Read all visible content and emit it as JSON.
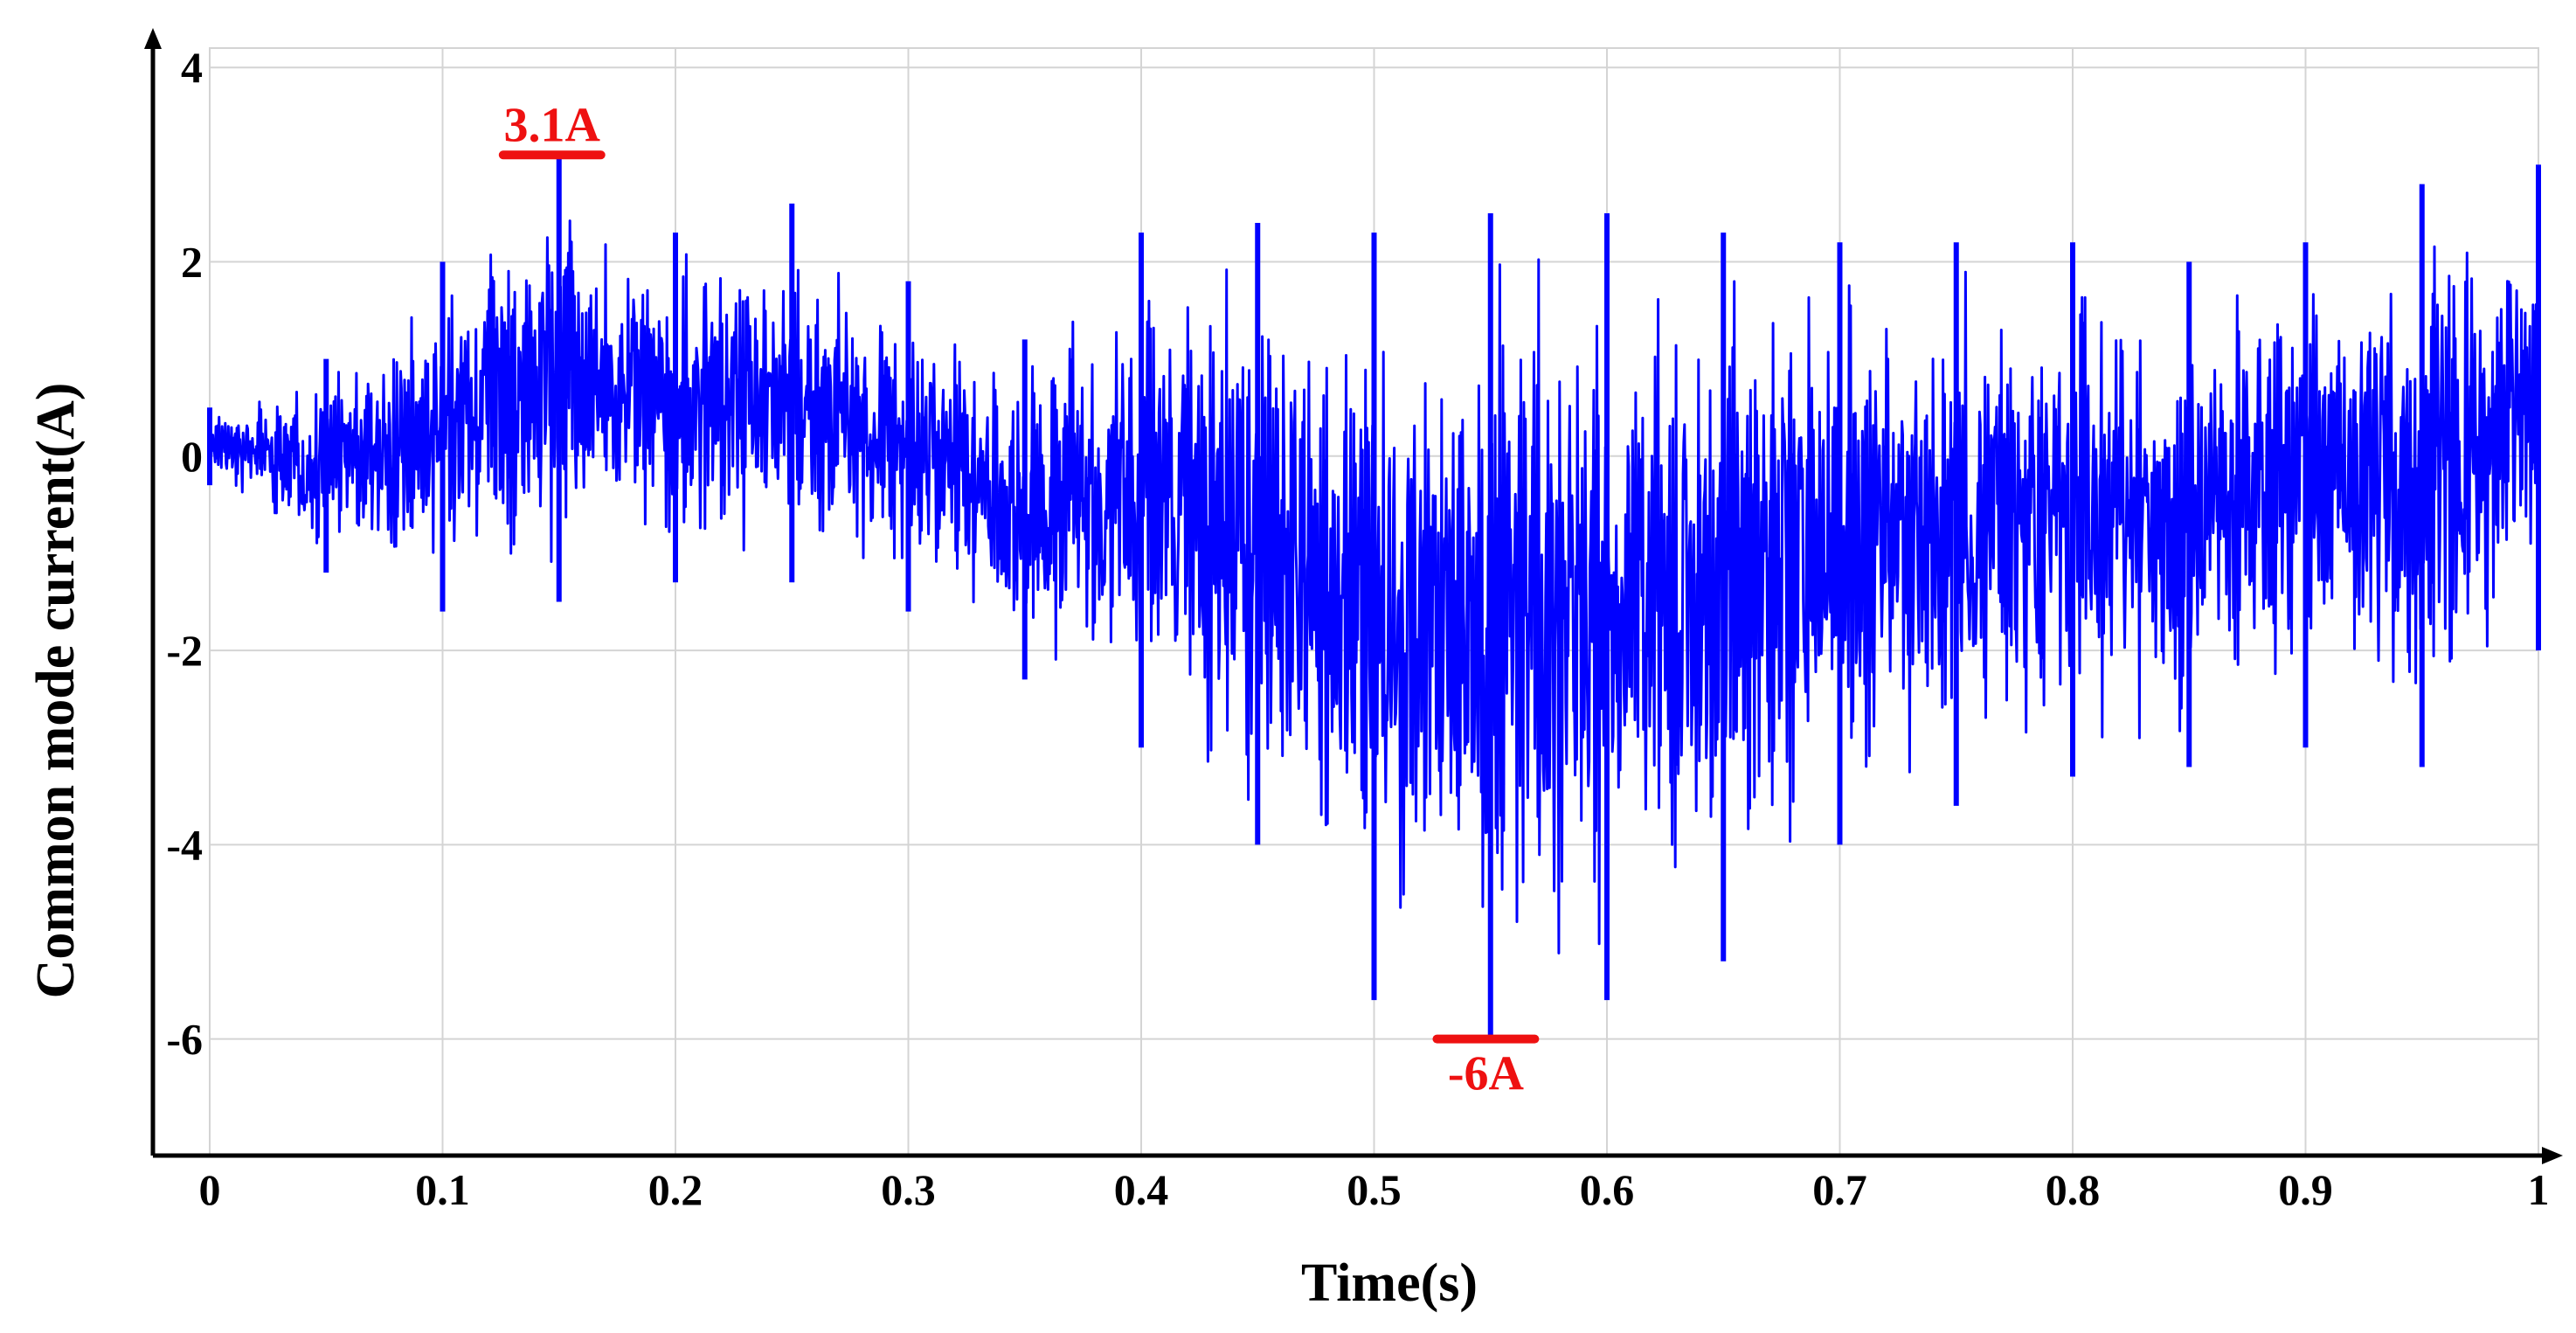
{
  "chart_data": {
    "type": "line",
    "title": "",
    "xlabel": "Time(s)",
    "ylabel": "Common mode current(A)",
    "xlim": [
      0,
      1
    ],
    "ylim": [
      -7.2,
      4.2
    ],
    "x_ticks": [
      0,
      0.1,
      0.2,
      0.3,
      0.4,
      0.5,
      0.6,
      0.7,
      0.8,
      0.9,
      1
    ],
    "x_tick_labels": [
      "0",
      "0.1",
      "0.2",
      "0.3",
      "0.4",
      "0.5",
      "0.6",
      "0.7",
      "0.8",
      "0.9",
      "1"
    ],
    "y_ticks": [
      4,
      2,
      0,
      -2,
      -4,
      -6
    ],
    "y_tick_labels": [
      "4",
      "2",
      "0",
      "-2",
      "-4",
      "-6"
    ],
    "grid": true,
    "legend": "none",
    "colors": {
      "series": "#0000ff",
      "annotation": "#ee1111",
      "grid": "#d4d4d4",
      "axis": "#000000"
    },
    "series": [
      {
        "color": "#0000ff",
        "envelope": {
          "x": [
            0,
            0.05,
            0.1,
            0.15,
            0.2,
            0.25,
            0.3,
            0.35,
            0.4,
            0.45,
            0.5,
            0.55,
            0.6,
            0.65,
            0.7,
            0.75,
            0.8,
            0.85,
            0.9,
            0.95,
            1
          ],
          "y_max": [
            0.5,
            1.0,
            2.0,
            3.1,
            2.3,
            2.6,
            1.8,
            1.2,
            2.3,
            2.4,
            2.3,
            2.5,
            2.5,
            2.3,
            2.2,
            2.2,
            2.2,
            2.0,
            2.2,
            2.8,
            3.0
          ],
          "y_min": [
            -0.3,
            -1.2,
            -1.6,
            -1.5,
            -1.3,
            -1.3,
            -1.6,
            -2.3,
            -3.0,
            -4.0,
            -5.6,
            -6.0,
            -5.6,
            -5.2,
            -4.0,
            -3.6,
            -3.3,
            -3.2,
            -3.0,
            -3.2,
            -2.0
          ]
        }
      }
    ],
    "annotations": [
      {
        "text": "3.1A",
        "x": 0.147,
        "y": 3.1,
        "bar_x": [
          0.126,
          0.168
        ],
        "color": "#ee1111"
      },
      {
        "text": "-6A",
        "x": 0.548,
        "y": -6.0,
        "bar_x": [
          0.527,
          0.569
        ],
        "color": "#ee1111"
      }
    ]
  }
}
